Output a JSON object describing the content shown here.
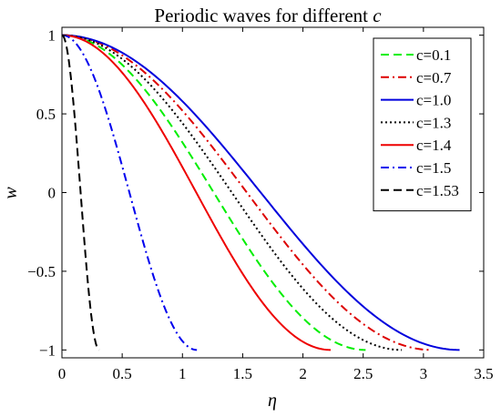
{
  "chart_data": {
    "type": "line",
    "title": "Periodic waves for different ",
    "title_var": "c",
    "xlabel": "η",
    "ylabel": "w",
    "xlim": [
      0,
      3.5
    ],
    "ylim": [
      -1.05,
      1.05
    ],
    "xticks": [
      0,
      0.5,
      1,
      1.5,
      2,
      2.5,
      3,
      3.5
    ],
    "xtick_labels": [
      "0",
      "0.5",
      "1",
      "1.5",
      "2",
      "2.5",
      "3",
      "3.5"
    ],
    "yticks": [
      1,
      0.5,
      0,
      -0.5,
      -1
    ],
    "ytick_labels": [
      "1",
      "0.5",
      "0",
      "−0.5",
      "−1"
    ],
    "grid": false,
    "legend_position": "top-right",
    "series": [
      {
        "name": "c=0.1",
        "color": "#00ee00",
        "dash": "dashed",
        "x_end": 2.52
      },
      {
        "name": "c=0.7",
        "color": "#dd0000",
        "dash": "dash-dot",
        "x_end": 3.07
      },
      {
        "name": "c=1.0",
        "color": "#0000dd",
        "dash": "solid",
        "x_end": 3.3
      },
      {
        "name": "c=1.3",
        "color": "#000000",
        "dash": "dotted",
        "x_end": 2.82
      },
      {
        "name": "c=1.4",
        "color": "#ee0000",
        "dash": "solid",
        "x_end": 2.23
      },
      {
        "name": "c=1.5",
        "color": "#0000ee",
        "dash": "dash-dot",
        "x_end": 1.12
      },
      {
        "name": "c=1.53",
        "color": "#000000",
        "dash": "dashed",
        "x_end": 0.31
      }
    ]
  }
}
